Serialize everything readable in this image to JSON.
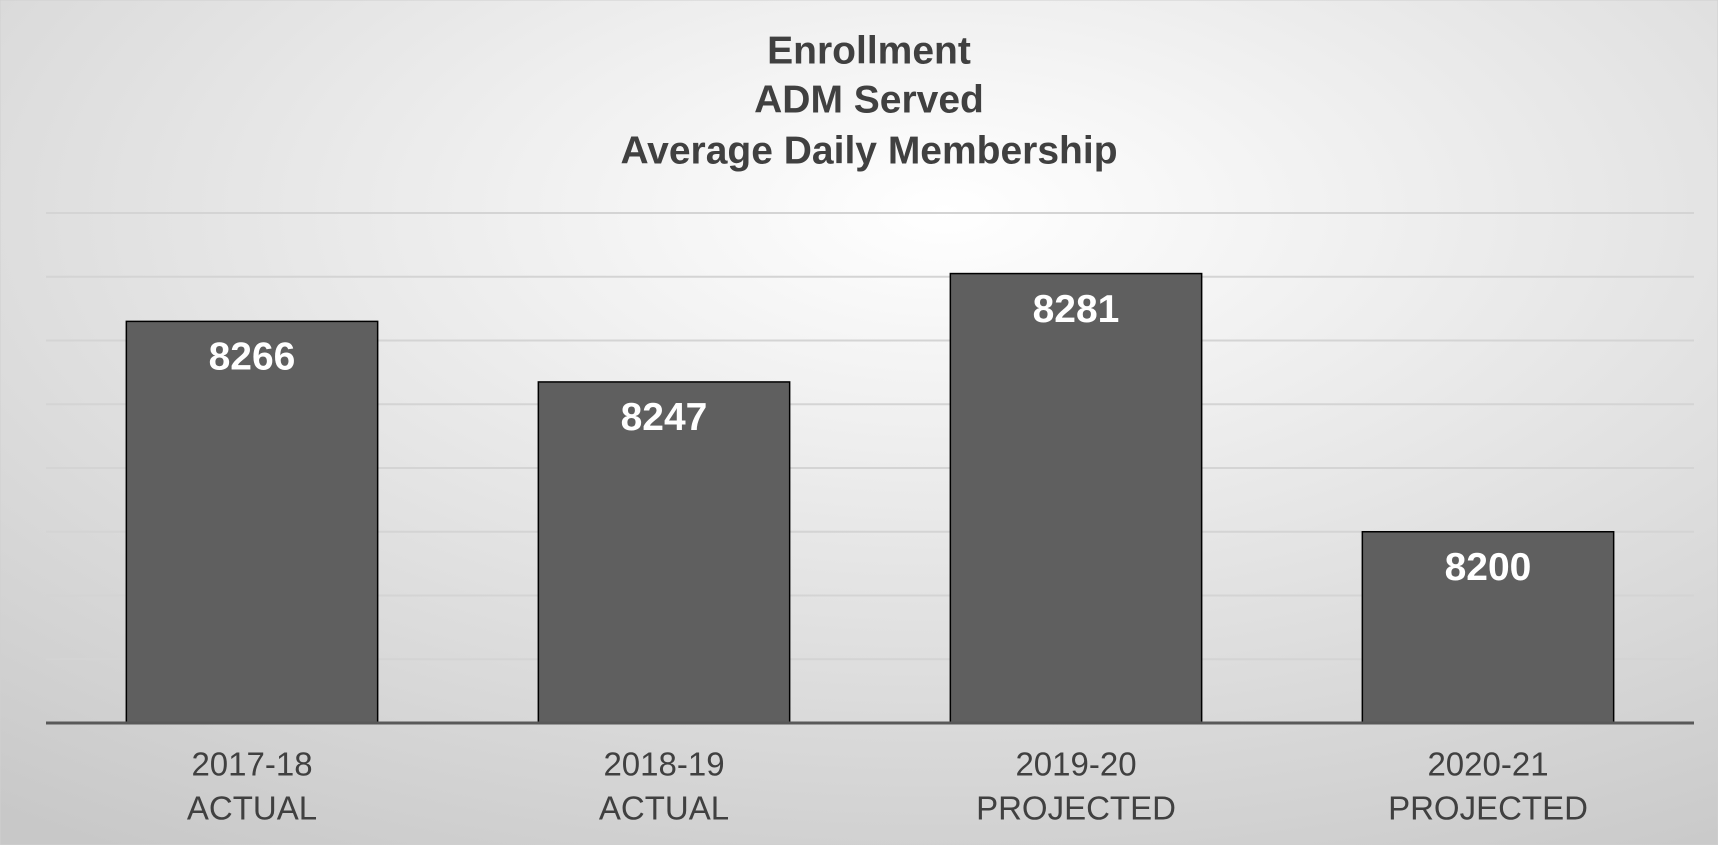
{
  "chart_data": {
    "type": "bar",
    "title": [
      "Enrollment",
      "ADM Served",
      "Average Daily Membership"
    ],
    "categories": [
      [
        "2017-18",
        "ACTUAL"
      ],
      [
        "2018-19",
        "ACTUAL"
      ],
      [
        "2019-20",
        "PROJECTED"
      ],
      [
        "2020-21",
        "PROJECTED"
      ]
    ],
    "values": [
      8266,
      8247,
      8281,
      8200
    ],
    "color": "#5f5f5f",
    "ylim": [
      8140,
      8300
    ],
    "yticks": [
      8140,
      8160,
      8180,
      8200,
      8220,
      8240,
      8260,
      8280,
      8300
    ],
    "grid": true
  }
}
